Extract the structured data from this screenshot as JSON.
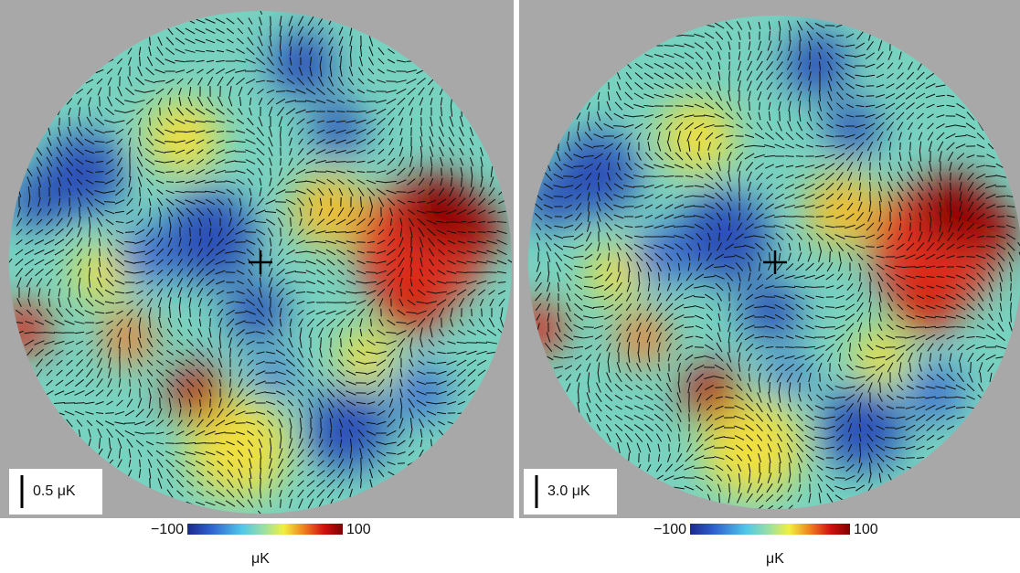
{
  "panels": [
    {
      "scale_label": "0.5 μK",
      "colorbar": {
        "ticks": [
          {
            "value": -100,
            "label": "−100"
          },
          {
            "value": 100,
            "label": "100"
          }
        ],
        "unit": "μK"
      }
    },
    {
      "scale_label": "3.0 μK",
      "colorbar": {
        "ticks": [
          {
            "value": -100,
            "label": "−100"
          },
          {
            "value": 100,
            "label": "100"
          }
        ],
        "unit": "μK"
      }
    }
  ]
}
